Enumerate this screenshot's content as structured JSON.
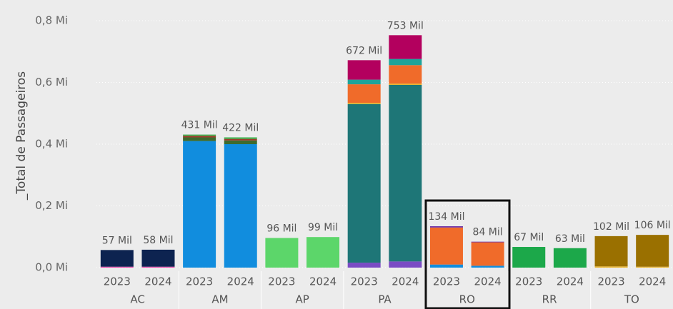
{
  "chart_data": {
    "type": "stacked_bar",
    "y_label": "_Total de Passageiros",
    "categories": [
      "2023",
      "2024",
      "2023",
      "2024",
      "2023",
      "2024",
      "2023",
      "2024",
      "2023",
      "2024",
      "2023",
      "2024",
      "2023",
      "2024"
    ],
    "groups": [
      "AC",
      "AM",
      "AP",
      "PA",
      "RO",
      "RR",
      "TO"
    ],
    "ylim": [
      0,
      0.8
    ],
    "yticks": [
      {
        "value": 0,
        "label": "0,0 Mi"
      },
      {
        "value": 0.2,
        "label": "0,2 Mi"
      },
      {
        "value": 0.4,
        "label": "0,4 Mi"
      },
      {
        "value": 0.6,
        "label": "0,6 Mi"
      },
      {
        "value": 0.8,
        "label": "0,8 Mi"
      }
    ],
    "grid": true,
    "series": [
      {
        "color": "#e645a8",
        "values": [
          0.003,
          0.003,
          0,
          0,
          0,
          0,
          0,
          0,
          0,
          0,
          0,
          0,
          0,
          0
        ]
      },
      {
        "color": "#7a4bc4",
        "values": [
          0,
          0,
          0,
          0,
          0,
          0,
          0.016,
          0.02,
          0,
          0,
          0,
          0,
          0,
          0
        ]
      },
      {
        "color": "#118dde",
        "values": [
          0,
          0,
          0.41,
          0.4,
          0,
          0,
          0,
          0,
          0.01,
          0.006,
          0,
          0,
          0,
          0
        ]
      },
      {
        "color": "#0d2350",
        "values": [
          0.054,
          0.055,
          0,
          0,
          0,
          0,
          0,
          0,
          0,
          0,
          0,
          0,
          0,
          0
        ]
      },
      {
        "color": "#3d6b2e",
        "values": [
          0,
          0,
          0.012,
          0.012,
          0,
          0,
          0,
          0,
          0,
          0,
          0,
          0,
          0,
          0
        ]
      },
      {
        "color": "#a0392a",
        "values": [
          0,
          0,
          0.005,
          0.005,
          0,
          0,
          0,
          0,
          0,
          0,
          0,
          0,
          0,
          0
        ]
      },
      {
        "color": "#3fb34f",
        "values": [
          0,
          0,
          0.004,
          0.005,
          0,
          0,
          0,
          0,
          0,
          0,
          0,
          0,
          0,
          0
        ]
      },
      {
        "color": "#5cd66a",
        "values": [
          0,
          0,
          0,
          0,
          0.096,
          0.099,
          0,
          0,
          0,
          0,
          0,
          0,
          0,
          0
        ]
      },
      {
        "color": "#1e7677",
        "values": [
          0,
          0,
          0,
          0,
          0,
          0,
          0.514,
          0.572,
          0,
          0,
          0,
          0,
          0,
          0
        ]
      },
      {
        "color": "#e8b32b",
        "values": [
          0,
          0,
          0,
          0,
          0,
          0,
          0.004,
          0.004,
          0,
          0,
          0,
          0,
          0.004,
          0.003
        ]
      },
      {
        "color": "#f06b2a",
        "values": [
          0,
          0,
          0,
          0,
          0,
          0,
          0.06,
          0.06,
          0.12,
          0.076,
          0,
          0,
          0,
          0
        ]
      },
      {
        "color": "#1ea39a",
        "values": [
          0,
          0,
          0,
          0,
          0,
          0,
          0.015,
          0.02,
          0,
          0,
          0,
          0,
          0,
          0
        ]
      },
      {
        "color": "#b3005e",
        "values": [
          0,
          0,
          0,
          0,
          0,
          0,
          0.063,
          0.077,
          0,
          0,
          0,
          0,
          0,
          0
        ]
      },
      {
        "color": "#1ca84a",
        "values": [
          0,
          0,
          0,
          0,
          0,
          0,
          0,
          0,
          0,
          0,
          0.067,
          0.063,
          0,
          0
        ]
      },
      {
        "color": "#9a7000",
        "values": [
          0,
          0,
          0,
          0,
          0,
          0,
          0,
          0,
          0,
          0,
          0,
          0,
          0.098,
          0.103
        ]
      },
      {
        "color": "#6a2fa8",
        "values": [
          0,
          0,
          0,
          0,
          0,
          0,
          0,
          0,
          0.004,
          0.002,
          0,
          0,
          0,
          0
        ]
      }
    ],
    "totals": [
      0.057,
      0.058,
      0.431,
      0.422,
      0.096,
      0.099,
      0.672,
      0.753,
      0.134,
      0.084,
      0.067,
      0.063,
      0.102,
      0.106
    ],
    "total_labels": [
      "57 Mil",
      "58 Mil",
      "431 Mil",
      "422 Mil",
      "96 Mil",
      "99 Mil",
      "672 Mil",
      "753 Mil",
      "134 Mil",
      "84 Mil",
      "67 Mil",
      "63 Mil",
      "102 Mil",
      "106 Mil"
    ]
  }
}
